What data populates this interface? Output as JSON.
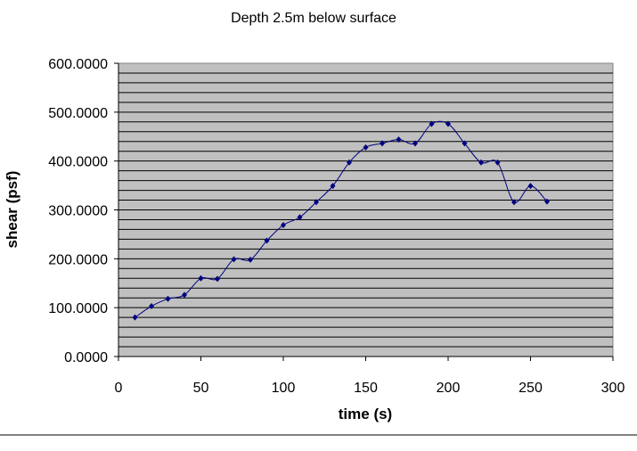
{
  "chart_data": {
    "type": "line",
    "title": "Depth 2.5m below surface",
    "xlabel": "time (s)",
    "ylabel": "shear (psf)",
    "xlim": [
      0,
      300
    ],
    "ylim": [
      0,
      600
    ],
    "x_ticks": [
      "0",
      "50",
      "100",
      "150",
      "200",
      "250",
      "300"
    ],
    "y_ticks": [
      "0.0000",
      "100.0000",
      "200.0000",
      "300.0000",
      "400.0000",
      "500.0000",
      "600.0000"
    ],
    "grid": true,
    "series": [
      {
        "name": "shear",
        "x": [
          10,
          20,
          30,
          40,
          50,
          60,
          70,
          80,
          90,
          100,
          110,
          120,
          130,
          140,
          150,
          160,
          170,
          180,
          190,
          200,
          210,
          220,
          230,
          240,
          250,
          260
        ],
        "y": [
          80,
          103,
          118,
          126,
          160,
          159,
          199,
          198,
          237,
          269,
          285,
          316,
          349,
          397,
          428,
          436,
          444,
          436,
          476,
          476,
          436,
          397,
          397,
          316,
          349,
          317
        ]
      }
    ]
  },
  "colors": {
    "plot_bg": "#c0c0c0",
    "line": "#000080",
    "grid": "#000000"
  }
}
